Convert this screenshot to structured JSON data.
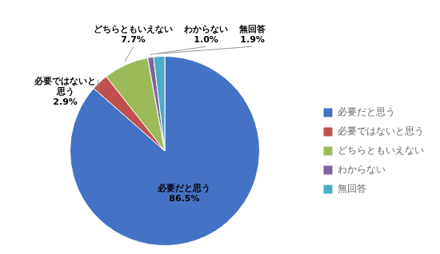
{
  "chart_data": {
    "type": "pie",
    "categories": [
      "必要だと思う",
      "必要ではないと思う",
      "どちらともいえない",
      "わからない",
      "無回答"
    ],
    "values": [
      86.5,
      2.9,
      7.7,
      1.0,
      1.9
    ],
    "colors": [
      "#4472C4",
      "#C0504D",
      "#9BBB59",
      "#8064A2",
      "#4BACC6"
    ],
    "legend": "right",
    "data_labels": true,
    "value_labels": [
      "必要だと思う\n86.5%",
      "必要ではないと\n思う\n2.9%",
      "どちらともいえない\n7.7%",
      "わからない\n1.0%",
      "無回答\n1.9%"
    ]
  }
}
